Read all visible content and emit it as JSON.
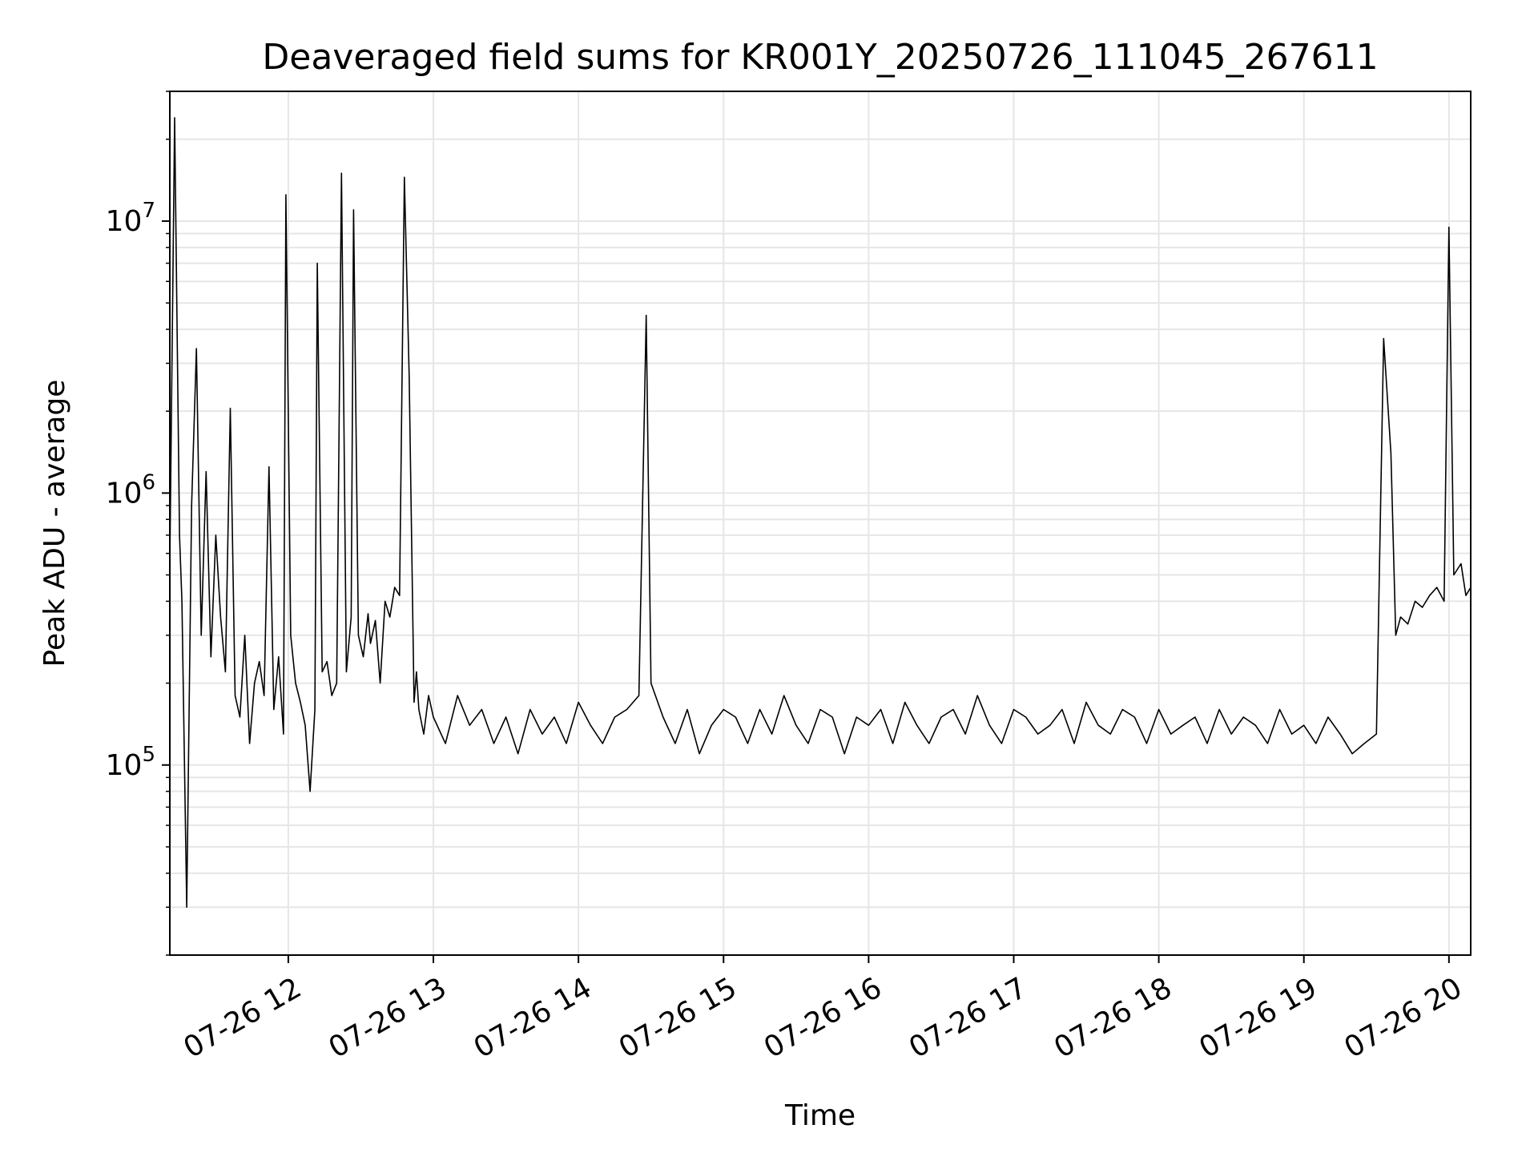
{
  "chart_data": {
    "type": "line",
    "title": "Deaveraged field sums for KR001Y_20250726_111045_267611",
    "xlabel": "Time",
    "ylabel": "Peak ADU - average",
    "yscale": "log",
    "grid": true,
    "legend": "none",
    "x_tick_labels": [
      "07-26 12",
      "07-26 13",
      "07-26 14",
      "07-26 15",
      "07-26 16",
      "07-26 17",
      "07-26 18",
      "07-26 19",
      "07-26 20"
    ],
    "x_ticks": [
      "2025-07-26 12:00",
      "2025-07-26 13:00",
      "2025-07-26 14:00",
      "2025-07-26 15:00",
      "2025-07-26 16:00",
      "2025-07-26 17:00",
      "2025-07-26 18:00",
      "2025-07-26 19:00",
      "2025-07-26 20:00"
    ],
    "x_tick_rotation": 30,
    "xlim": [
      "2025-07-26 11:11",
      "2025-07-26 20:09"
    ],
    "y_ticks": [
      {
        "base": "10",
        "exp": "5",
        "value": 100000
      },
      {
        "base": "10",
        "exp": "6",
        "value": 1000000
      },
      {
        "base": "10",
        "exp": "7",
        "value": 10000000
      }
    ],
    "ylim": [
      20000,
      30000000
    ],
    "line_color": "#000000",
    "series": [
      {
        "x": [
          "2025-07-26 11:11",
          "2025-07-26 11:13",
          "2025-07-26 11:15",
          "2025-07-26 11:16",
          "2025-07-26 11:18",
          "2025-07-26 11:20",
          "2025-07-26 11:22",
          "2025-07-26 11:24",
          "2025-07-26 11:26",
          "2025-07-26 11:28",
          "2025-07-26 11:30",
          "2025-07-26 11:32",
          "2025-07-26 11:34",
          "2025-07-26 11:36",
          "2025-07-26 11:38",
          "2025-07-26 11:40",
          "2025-07-26 11:42",
          "2025-07-26 11:44",
          "2025-07-26 11:46",
          "2025-07-26 11:48",
          "2025-07-26 11:50",
          "2025-07-26 11:52",
          "2025-07-26 11:54",
          "2025-07-26 11:56",
          "2025-07-26 11:58",
          "2025-07-26 11:59",
          "2025-07-26 12:01",
          "2025-07-26 12:03",
          "2025-07-26 12:05",
          "2025-07-26 12:07",
          "2025-07-26 12:09",
          "2025-07-26 12:11",
          "2025-07-26 12:12",
          "2025-07-26 12:14",
          "2025-07-26 12:16",
          "2025-07-26 12:18",
          "2025-07-26 12:20",
          "2025-07-26 12:22",
          "2025-07-26 12:24",
          "2025-07-26 12:26",
          "2025-07-26 12:27",
          "2025-07-26 12:29",
          "2025-07-26 12:31",
          "2025-07-26 12:33",
          "2025-07-26 12:34",
          "2025-07-26 12:36",
          "2025-07-26 12:38",
          "2025-07-26 12:40",
          "2025-07-26 12:42",
          "2025-07-26 12:44",
          "2025-07-26 12:46",
          "2025-07-26 12:48",
          "2025-07-26 12:50",
          "2025-07-26 12:52",
          "2025-07-26 12:53",
          "2025-07-26 12:54",
          "2025-07-26 12:56",
          "2025-07-26 12:58",
          "2025-07-26 13:00",
          "2025-07-26 13:05",
          "2025-07-26 13:10",
          "2025-07-26 13:15",
          "2025-07-26 13:20",
          "2025-07-26 13:25",
          "2025-07-26 13:30",
          "2025-07-26 13:35",
          "2025-07-26 13:40",
          "2025-07-26 13:45",
          "2025-07-26 13:50",
          "2025-07-26 13:55",
          "2025-07-26 14:00",
          "2025-07-26 14:05",
          "2025-07-26 14:10",
          "2025-07-26 14:15",
          "2025-07-26 14:20",
          "2025-07-26 14:25",
          "2025-07-26 14:28",
          "2025-07-26 14:30",
          "2025-07-26 14:35",
          "2025-07-26 14:40",
          "2025-07-26 14:45",
          "2025-07-26 14:50",
          "2025-07-26 14:55",
          "2025-07-26 15:00",
          "2025-07-26 15:05",
          "2025-07-26 15:10",
          "2025-07-26 15:15",
          "2025-07-26 15:20",
          "2025-07-26 15:25",
          "2025-07-26 15:30",
          "2025-07-26 15:35",
          "2025-07-26 15:40",
          "2025-07-26 15:45",
          "2025-07-26 15:50",
          "2025-07-26 15:55",
          "2025-07-26 16:00",
          "2025-07-26 16:05",
          "2025-07-26 16:10",
          "2025-07-26 16:15",
          "2025-07-26 16:20",
          "2025-07-26 16:25",
          "2025-07-26 16:30",
          "2025-07-26 16:35",
          "2025-07-26 16:40",
          "2025-07-26 16:45",
          "2025-07-26 16:50",
          "2025-07-26 16:55",
          "2025-07-26 17:00",
          "2025-07-26 17:05",
          "2025-07-26 17:10",
          "2025-07-26 17:15",
          "2025-07-26 17:20",
          "2025-07-26 17:25",
          "2025-07-26 17:30",
          "2025-07-26 17:35",
          "2025-07-26 17:40",
          "2025-07-26 17:45",
          "2025-07-26 17:50",
          "2025-07-26 17:55",
          "2025-07-26 18:00",
          "2025-07-26 18:05",
          "2025-07-26 18:10",
          "2025-07-26 18:15",
          "2025-07-26 18:20",
          "2025-07-26 18:25",
          "2025-07-26 18:30",
          "2025-07-26 18:35",
          "2025-07-26 18:40",
          "2025-07-26 18:45",
          "2025-07-26 18:50",
          "2025-07-26 18:55",
          "2025-07-26 19:00",
          "2025-07-26 19:05",
          "2025-07-26 19:10",
          "2025-07-26 19:15",
          "2025-07-26 19:20",
          "2025-07-26 19:25",
          "2025-07-26 19:30",
          "2025-07-26 19:33",
          "2025-07-26 19:36",
          "2025-07-26 19:38",
          "2025-07-26 19:40",
          "2025-07-26 19:43",
          "2025-07-26 19:46",
          "2025-07-26 19:49",
          "2025-07-26 19:52",
          "2025-07-26 19:55",
          "2025-07-26 19:58",
          "2025-07-26 20:00",
          "2025-07-26 20:02",
          "2025-07-26 20:05",
          "2025-07-26 20:07",
          "2025-07-26 20:09"
        ],
        "y": [
          550000,
          24000000,
          700000,
          400000,
          30000,
          900000,
          3400000,
          300000,
          1200000,
          250000,
          700000,
          350000,
          220000,
          2050000,
          180000,
          150000,
          300000,
          120000,
          200000,
          240000,
          180000,
          1250000,
          160000,
          250000,
          130000,
          12500000,
          300000,
          200000,
          170000,
          140000,
          80000,
          160000,
          7000000,
          220000,
          240000,
          180000,
          200000,
          15000000,
          220000,
          350000,
          11000000,
          300000,
          250000,
          360000,
          280000,
          340000,
          200000,
          400000,
          350000,
          450000,
          420000,
          14500000,
          2700000,
          170000,
          220000,
          160000,
          130000,
          180000,
          150000,
          120000,
          180000,
          140000,
          160000,
          120000,
          150000,
          110000,
          160000,
          130000,
          150000,
          120000,
          170000,
          140000,
          120000,
          150000,
          160000,
          180000,
          4500000,
          200000,
          150000,
          120000,
          160000,
          110000,
          140000,
          160000,
          150000,
          120000,
          160000,
          130000,
          180000,
          140000,
          120000,
          160000,
          150000,
          110000,
          150000,
          140000,
          160000,
          120000,
          170000,
          140000,
          120000,
          150000,
          160000,
          130000,
          180000,
          140000,
          120000,
          160000,
          150000,
          130000,
          140000,
          160000,
          120000,
          170000,
          140000,
          130000,
          160000,
          150000,
          120000,
          160000,
          130000,
          140000,
          150000,
          120000,
          160000,
          130000,
          150000,
          140000,
          120000,
          160000,
          130000,
          140000,
          120000,
          150000,
          130000,
          110000,
          120000,
          130000,
          3700000,
          1400000,
          300000,
          350000,
          330000,
          400000,
          380000,
          420000,
          450000,
          400000,
          9500000,
          500000,
          550000,
          420000,
          450000
        ]
      }
    ]
  }
}
